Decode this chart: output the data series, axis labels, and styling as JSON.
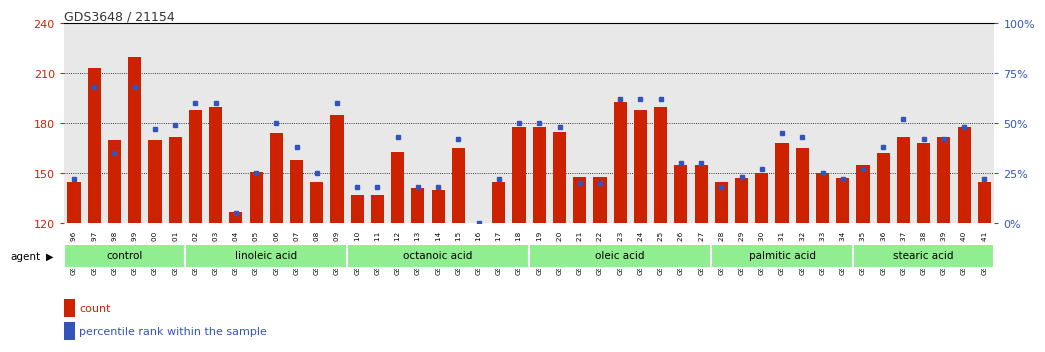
{
  "title": "GDS3648 / 21154",
  "samples": [
    "GSM525196",
    "GSM525197",
    "GSM525198",
    "GSM525199",
    "GSM525200",
    "GSM525201",
    "GSM525202",
    "GSM525203",
    "GSM525204",
    "GSM525205",
    "GSM525206",
    "GSM525207",
    "GSM525208",
    "GSM525209",
    "GSM525210",
    "GSM525211",
    "GSM525212",
    "GSM525213",
    "GSM525214",
    "GSM525215",
    "GSM525216",
    "GSM525217",
    "GSM525218",
    "GSM525219",
    "GSM525220",
    "GSM525221",
    "GSM525222",
    "GSM525223",
    "GSM525224",
    "GSM525225",
    "GSM525226",
    "GSM525227",
    "GSM525228",
    "GSM525229",
    "GSM525230",
    "GSM525231",
    "GSM525232",
    "GSM525233",
    "GSM525234",
    "GSM525235",
    "GSM525236",
    "GSM525237",
    "GSM525238",
    "GSM525239",
    "GSM525240",
    "GSM525241"
  ],
  "red_values": [
    145,
    213,
    170,
    220,
    170,
    172,
    188,
    190,
    127,
    151,
    174,
    158,
    145,
    185,
    137,
    137,
    163,
    141,
    140,
    165,
    120,
    145,
    178,
    178,
    175,
    148,
    148,
    193,
    188,
    190,
    155,
    155,
    145,
    147,
    150,
    168,
    165,
    150,
    147,
    155,
    162,
    172,
    168,
    172,
    178,
    145
  ],
  "blue_pct": [
    22,
    68,
    35,
    68,
    47,
    49,
    60,
    60,
    5,
    25,
    50,
    38,
    25,
    60,
    18,
    18,
    43,
    18,
    18,
    42,
    0,
    22,
    50,
    50,
    48,
    20,
    20,
    62,
    62,
    62,
    30,
    30,
    18,
    23,
    27,
    45,
    43,
    25,
    22,
    27,
    38,
    52,
    42,
    42,
    48,
    22
  ],
  "groups": [
    {
      "label": "control",
      "start": 0,
      "end": 6
    },
    {
      "label": "linoleic acid",
      "start": 6,
      "end": 14
    },
    {
      "label": "octanoic acid",
      "start": 14,
      "end": 23
    },
    {
      "label": "oleic acid",
      "start": 23,
      "end": 32
    },
    {
      "label": "palmitic acid",
      "start": 32,
      "end": 39
    },
    {
      "label": "stearic acid",
      "start": 39,
      "end": 46
    }
  ],
  "ylim_left": [
    120,
    240
  ],
  "yticks_left": [
    120,
    150,
    180,
    210,
    240
  ],
  "yticks_right": [
    0,
    25,
    50,
    75,
    100
  ],
  "bar_color": "#cc2200",
  "marker_color": "#3355bb",
  "axis_bg": "#e8e8e8",
  "group_bg": "#90ee90",
  "left_axis_color": "#cc2200",
  "right_axis_color": "#3355bb"
}
